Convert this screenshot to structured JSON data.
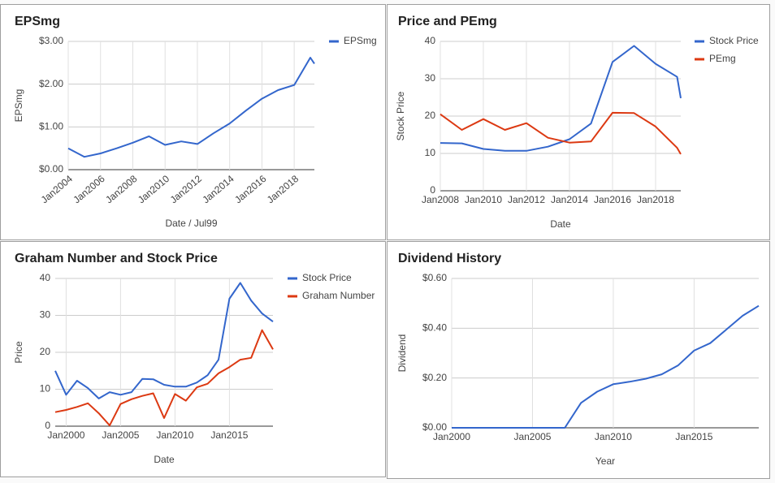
{
  "chart_data": [
    {
      "type": "line",
      "title": "EPSmg",
      "x_label": "Date / Jul99",
      "y_label": "EPSmg",
      "x": [
        2004,
        2005,
        2006,
        2007,
        2008,
        2009,
        2010,
        2011,
        2012,
        2013,
        2014,
        2015,
        2016,
        2017,
        2018,
        2019,
        2019.25
      ],
      "xlim": [
        2004,
        2019.25
      ],
      "xticks": [
        {
          "value": 2004,
          "label": "Jan2004"
        },
        {
          "value": 2006,
          "label": "Jan2006"
        },
        {
          "value": 2008,
          "label": "Jan2008"
        },
        {
          "value": 2010,
          "label": "Jan2010"
        },
        {
          "value": 2012,
          "label": "Jan2012"
        },
        {
          "value": 2014,
          "label": "Jan2014"
        },
        {
          "value": 2016,
          "label": "Jan2016"
        },
        {
          "value": 2018,
          "label": "Jan2018"
        }
      ],
      "ylim": [
        0,
        3
      ],
      "yticks": [
        {
          "value": 0,
          "label": "$0.00"
        },
        {
          "value": 1,
          "label": "$1.00"
        },
        {
          "value": 2,
          "label": "$2.00"
        },
        {
          "value": 3,
          "label": "$3.00"
        }
      ],
      "series": [
        {
          "name": "EPSmg",
          "color": "#3366cc",
          "values": [
            0.5,
            0.3,
            0.38,
            0.5,
            0.63,
            0.78,
            0.58,
            0.66,
            0.6,
            0.85,
            1.08,
            1.38,
            1.66,
            1.86,
            1.98,
            2.62,
            2.48
          ]
        }
      ],
      "legend": "right",
      "grid": true
    },
    {
      "type": "line",
      "title": "Price and PEmg",
      "x_label": "Date",
      "y_label": "Stock Price",
      "x": [
        2008,
        2009,
        2010,
        2011,
        2012,
        2013,
        2014,
        2015,
        2016,
        2017,
        2018,
        2019,
        2019.17
      ],
      "xlim": [
        2008,
        2019.17
      ],
      "xticks": [
        {
          "value": 2008,
          "label": "Jan2008"
        },
        {
          "value": 2010,
          "label": "Jan2010"
        },
        {
          "value": 2012,
          "label": "Jan2012"
        },
        {
          "value": 2014,
          "label": "Jan2014"
        },
        {
          "value": 2016,
          "label": "Jan2016"
        },
        {
          "value": 2018,
          "label": "Jan2018"
        }
      ],
      "ylim": [
        0,
        40
      ],
      "yticks": [
        0,
        10,
        20,
        30,
        40
      ],
      "series": [
        {
          "name": "Stock Price",
          "color": "#3366cc",
          "values": [
            12.8,
            12.7,
            11.2,
            10.7,
            10.7,
            11.8,
            13.8,
            18.0,
            34.5,
            38.8,
            34.0,
            30.5,
            24.8
          ]
        },
        {
          "name": "PEmg",
          "color": "#dc3912",
          "values": [
            20.5,
            16.3,
            19.2,
            16.3,
            18.1,
            14.2,
            12.9,
            13.2,
            20.9,
            20.8,
            17.2,
            11.5,
            9.8
          ]
        }
      ],
      "legend": "right",
      "grid": true
    },
    {
      "type": "line",
      "title": "Graham Number and Stock Price",
      "x_label": "Date",
      "y_label": "Price",
      "x": [
        1999,
        2000,
        2001,
        2002,
        2003,
        2004,
        2005,
        2006,
        2007,
        2008,
        2009,
        2010,
        2011,
        2012,
        2013,
        2014,
        2015,
        2016,
        2017,
        2018,
        2019
      ],
      "xlim": [
        1999,
        2019
      ],
      "xticks": [
        {
          "value": 2000,
          "label": "Jan2000"
        },
        {
          "value": 2005,
          "label": "Jan2005"
        },
        {
          "value": 2010,
          "label": "Jan2010"
        },
        {
          "value": 2015,
          "label": "Jan2015"
        }
      ],
      "ylim": [
        0,
        40
      ],
      "yticks": [
        0,
        10,
        20,
        30,
        40
      ],
      "series": [
        {
          "name": "Stock Price",
          "color": "#3366cc",
          "values": [
            15,
            8.5,
            12.3,
            10.3,
            7.5,
            9.2,
            8.5,
            9.2,
            12.8,
            12.7,
            11.2,
            10.7,
            10.7,
            11.8,
            13.8,
            18,
            34.5,
            38.8,
            34,
            30.5,
            28.3
          ]
        },
        {
          "name": "Graham Number",
          "color": "#dc3912",
          "values": [
            3.8,
            4.4,
            5.2,
            6.2,
            3.5,
            0.2,
            6,
            7.3,
            8.2,
            8.9,
            2.2,
            8.7,
            6.9,
            10.5,
            11.5,
            14.3,
            16,
            18,
            18.5,
            26,
            20.8
          ]
        }
      ],
      "legend": "right",
      "grid": true
    },
    {
      "type": "line",
      "title": "Dividend History",
      "x_label": "Year",
      "y_label": "Dividend",
      "x": [
        2000,
        2001,
        2002,
        2003,
        2004,
        2005,
        2006,
        2007,
        2008,
        2009,
        2010,
        2011,
        2012,
        2013,
        2014,
        2015,
        2016,
        2017,
        2018,
        2019
      ],
      "xlim": [
        2000,
        2019
      ],
      "xticks": [
        {
          "value": 2000,
          "label": "Jan2000"
        },
        {
          "value": 2005,
          "label": "Jan2005"
        },
        {
          "value": 2010,
          "label": "Jan2010"
        },
        {
          "value": 2015,
          "label": "Jan2015"
        }
      ],
      "ylim": [
        0,
        0.6
      ],
      "yticks": [
        {
          "value": 0,
          "label": "$0.00"
        },
        {
          "value": 0.2,
          "label": "$0.20"
        },
        {
          "value": 0.4,
          "label": "$0.40"
        },
        {
          "value": 0.6,
          "label": "$0.60"
        }
      ],
      "series": [
        {
          "color": "#3366cc",
          "values": [
            0,
            0,
            0,
            0,
            0,
            0,
            0,
            0,
            0.1,
            0.145,
            0.175,
            0.185,
            0.197,
            0.215,
            0.25,
            0.31,
            0.34,
            0.395,
            0.45,
            0.49
          ]
        }
      ],
      "grid": true
    }
  ]
}
